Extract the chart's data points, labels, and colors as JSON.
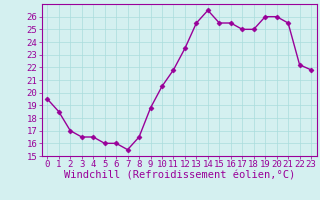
{
  "x": [
    0,
    1,
    2,
    3,
    4,
    5,
    6,
    7,
    8,
    9,
    10,
    11,
    12,
    13,
    14,
    15,
    16,
    17,
    18,
    19,
    20,
    21,
    22,
    23
  ],
  "y": [
    19.5,
    18.5,
    17.0,
    16.5,
    16.5,
    16.0,
    16.0,
    15.5,
    16.5,
    18.8,
    20.5,
    21.8,
    23.5,
    25.5,
    26.5,
    25.5,
    25.5,
    25.0,
    25.0,
    26.0,
    26.0,
    25.5,
    22.2,
    21.8
  ],
  "line_color": "#990099",
  "marker": "D",
  "marker_size": 2.5,
  "bg_color": "#d4f0f0",
  "grid_color": "#aadddd",
  "xlabel": "Windchill (Refroidissement éolien,°C)",
  "xlabel_color": "#990099",
  "tick_color": "#990099",
  "ylim": [
    15,
    27
  ],
  "yticks": [
    15,
    16,
    17,
    18,
    19,
    20,
    21,
    22,
    23,
    24,
    25,
    26
  ],
  "xlim": [
    -0.5,
    23.5
  ],
  "xticks": [
    0,
    1,
    2,
    3,
    4,
    5,
    6,
    7,
    8,
    9,
    10,
    11,
    12,
    13,
    14,
    15,
    16,
    17,
    18,
    19,
    20,
    21,
    22,
    23
  ],
  "spine_color": "#990099",
  "tick_fontsize": 6.5,
  "xlabel_fontsize": 7.5,
  "linewidth": 1.0
}
